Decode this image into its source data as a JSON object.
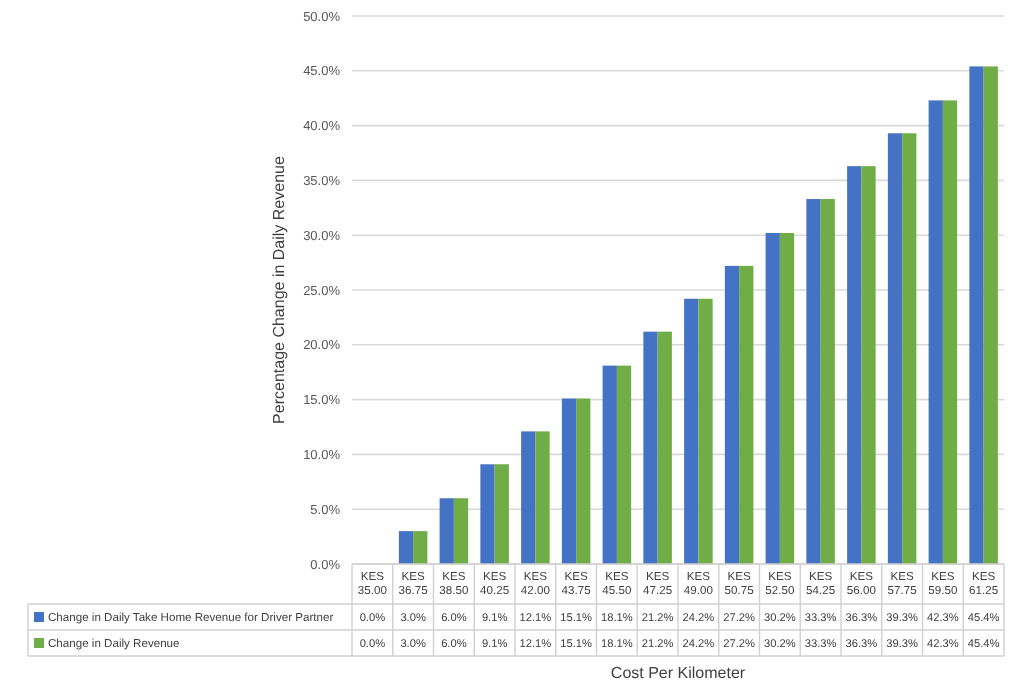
{
  "chart_data": {
    "type": "bar",
    "ylabel": "Percentage Change in Daily Revenue",
    "xlabel": "Cost Per Kilometer",
    "categories": [
      "KES 35.00",
      "KES 36.75",
      "KES 38.50",
      "KES 40.25",
      "KES 42.00",
      "KES 43.75",
      "KES 45.50",
      "KES 47.25",
      "KES 49.00",
      "KES 50.75",
      "KES 52.50",
      "KES 54.25",
      "KES 56.00",
      "KES 57.75",
      "KES 59.50",
      "KES 61.25"
    ],
    "series": [
      {
        "name": "Change in Daily Take Home Revenue for Driver Partner",
        "color": "#4472c4",
        "values": [
          0,
          3.0,
          6.0,
          9.1,
          12.1,
          15.1,
          18.1,
          21.2,
          24.2,
          27.2,
          30.2,
          33.3,
          36.3,
          39.3,
          42.3,
          45.4
        ],
        "value_labels": [
          "0.0%",
          "3.0%",
          "6.0%",
          "9.1%",
          "12.1%",
          "15.1%",
          "18.1%",
          "21.2%",
          "24.2%",
          "27.2%",
          "30.2%",
          "33.3%",
          "36.3%",
          "39.3%",
          "42.3%",
          "45.4%"
        ]
      },
      {
        "name": "Change in Daily Revenue",
        "color": "#70ad47",
        "values": [
          0,
          3.0,
          6.0,
          9.1,
          12.1,
          15.1,
          18.1,
          21.2,
          24.2,
          27.2,
          30.2,
          33.3,
          36.3,
          39.3,
          42.3,
          45.4
        ],
        "value_labels": [
          "0.0%",
          "3.0%",
          "6.0%",
          "9.1%",
          "12.1%",
          "15.1%",
          "18.1%",
          "21.2%",
          "24.2%",
          "27.2%",
          "30.2%",
          "33.3%",
          "36.3%",
          "39.3%",
          "42.3%",
          "45.4%"
        ]
      }
    ],
    "ylim": [
      0,
      50
    ],
    "yticks": [
      {
        "value": 0,
        "label": "0.0%"
      },
      {
        "value": 5,
        "label": "5.0%"
      },
      {
        "value": 10,
        "label": "10.0%"
      },
      {
        "value": 15,
        "label": "15.0%"
      },
      {
        "value": 20,
        "label": "20.0%"
      },
      {
        "value": 25,
        "label": "25.0%"
      },
      {
        "value": 30,
        "label": "30.0%"
      },
      {
        "value": 35,
        "label": "35.0%"
      },
      {
        "value": 40,
        "label": "40.0%"
      },
      {
        "value": 45,
        "label": "45.0%"
      },
      {
        "value": 50,
        "label": "50.0%"
      }
    ],
    "grid": "y",
    "legend": "bottom"
  }
}
